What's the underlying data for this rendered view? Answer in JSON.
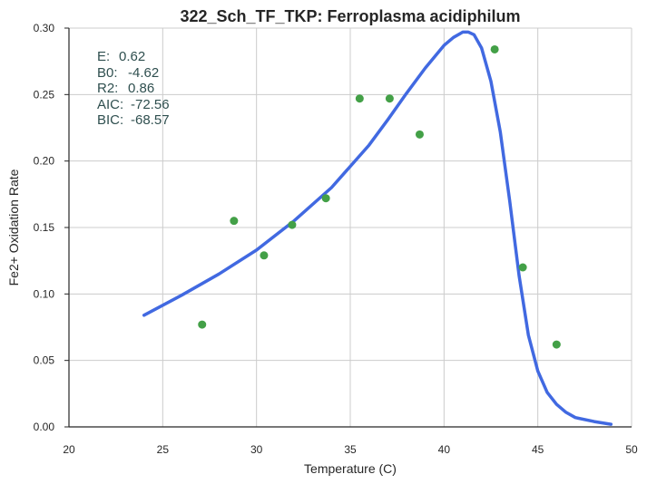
{
  "chart_data": {
    "type": "scatter",
    "title": "322_Sch_TF_TKP: Ferroplasma acidiphilum",
    "xlabel": "Temperature (C)",
    "ylabel": "Fe2+ Oxidation Rate",
    "xlim": [
      20,
      50
    ],
    "ylim": [
      0,
      0.3
    ],
    "xticks": [
      "20",
      "25",
      "30",
      "35",
      "40",
      "45",
      "50"
    ],
    "yticks": [
      "0.00",
      "0.05",
      "0.10",
      "0.15",
      "0.20",
      "0.25",
      "0.30"
    ],
    "grid": true,
    "series": [
      {
        "kind": "scatter",
        "color": "#43a047",
        "x": [
          27.1,
          28.8,
          30.4,
          31.9,
          33.7,
          35.5,
          37.1,
          38.7,
          42.7,
          44.2,
          46.0
        ],
        "y": [
          0.077,
          0.155,
          0.129,
          0.152,
          0.172,
          0.247,
          0.247,
          0.22,
          0.284,
          0.12,
          0.062
        ]
      },
      {
        "kind": "line",
        "color": "#4169e1",
        "x": [
          24.0,
          26.0,
          28.0,
          30.0,
          32.0,
          34.0,
          36.0,
          37.0,
          38.0,
          39.0,
          40.0,
          40.5,
          41.0,
          41.3,
          41.6,
          42.0,
          42.5,
          43.0,
          43.5,
          44.0,
          44.5,
          45.0,
          45.5,
          46.0,
          46.5,
          47.0,
          48.0,
          48.9
        ],
        "y": [
          0.084,
          0.099,
          0.115,
          0.133,
          0.155,
          0.18,
          0.212,
          0.231,
          0.251,
          0.27,
          0.287,
          0.293,
          0.297,
          0.297,
          0.295,
          0.285,
          0.26,
          0.222,
          0.17,
          0.114,
          0.069,
          0.042,
          0.026,
          0.017,
          0.011,
          0.007,
          0.004,
          0.002
        ]
      }
    ],
    "annotations": [
      {
        "label": "E:",
        "value": "0.62"
      },
      {
        "label": "B0:",
        "value": "-4.62"
      },
      {
        "label": "R2:",
        "value": "0.86"
      },
      {
        "label": "AIC:",
        "value": "-72.56"
      },
      {
        "label": "BIC:",
        "value": "-68.57"
      }
    ]
  }
}
